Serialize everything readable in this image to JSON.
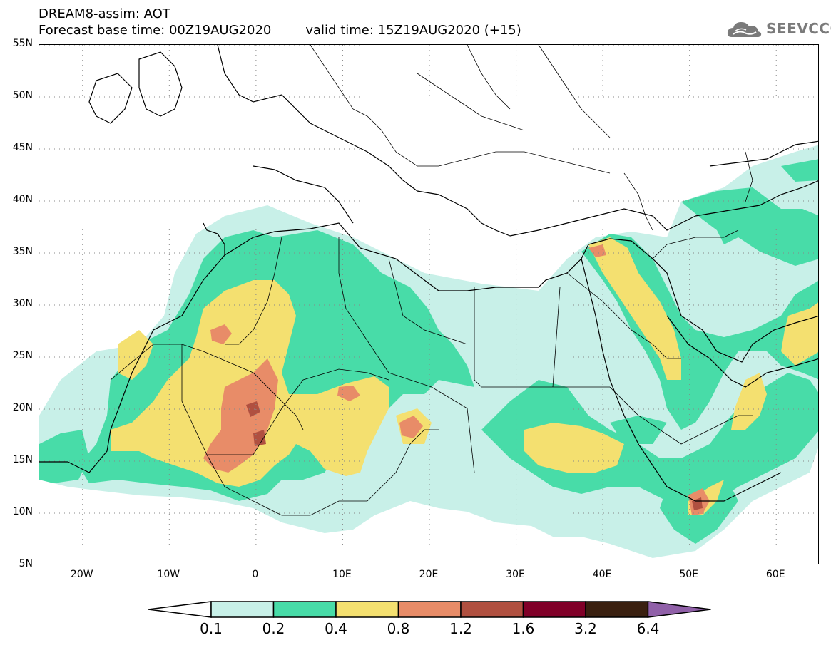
{
  "header": {
    "line1": "DREAM8-assim: AOT",
    "base_time": "Forecast base time: 00Z19AUG2020",
    "valid_time": "valid time: 15Z19AUG2020 (+15)"
  },
  "logo": {
    "text": "SEEVCCC",
    "icon": "cloud-icon",
    "color": "#7a7a7a"
  },
  "map": {
    "projection": "lat-lon",
    "lon_range": [
      -25,
      65
    ],
    "lat_range": [
      5,
      55
    ],
    "lat_ticks": [
      {
        "value": 55,
        "label": "55N"
      },
      {
        "value": 50,
        "label": "50N"
      },
      {
        "value": 45,
        "label": "45N"
      },
      {
        "value": 40,
        "label": "40N"
      },
      {
        "value": 35,
        "label": "35N"
      },
      {
        "value": 30,
        "label": "30N"
      },
      {
        "value": 25,
        "label": "25N"
      },
      {
        "value": 20,
        "label": "20N"
      },
      {
        "value": 15,
        "label": "15N"
      },
      {
        "value": 10,
        "label": "10N"
      },
      {
        "value": 5,
        "label": "5N"
      }
    ],
    "lon_ticks": [
      {
        "value": -20,
        "label": "20W"
      },
      {
        "value": -10,
        "label": "10W"
      },
      {
        "value": 0,
        "label": "0"
      },
      {
        "value": 10,
        "label": "10E"
      },
      {
        "value": 20,
        "label": "20E"
      },
      {
        "value": 30,
        "label": "30E"
      },
      {
        "value": 40,
        "label": "40E"
      },
      {
        "value": 50,
        "label": "50E"
      },
      {
        "value": 60,
        "label": "60E"
      }
    ],
    "grid": "dotted"
  },
  "colorbar": {
    "labels": [
      "0.1",
      "0.2",
      "0.4",
      "0.8",
      "1.2",
      "1.6",
      "3.2",
      "6.4"
    ],
    "colors": [
      "#c8f0e8",
      "#48dca8",
      "#f4e070",
      "#e88c68",
      "#b05040",
      "#800028",
      "#3a2010",
      "#9060a8"
    ],
    "extend": "both"
  }
}
